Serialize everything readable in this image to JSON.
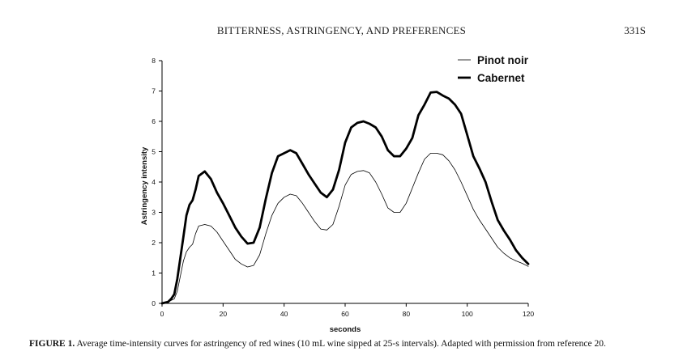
{
  "header": {
    "running_title": "BITTERNESS, ASTRINGENCY, AND PREFERENCES",
    "page_number": "331S"
  },
  "caption": {
    "label": "FIGURE 1.",
    "text": "Average time-intensity curves for astringency of red wines (10 mL wine sipped at 25-s intervals). Adapted with permission from reference 20."
  },
  "chart_data": {
    "type": "line",
    "title": "",
    "xlabel": "seconds",
    "ylabel": "Astringency intensity",
    "xlim": [
      0,
      120
    ],
    "ylim": [
      0,
      8
    ],
    "x_ticks": [
      0,
      20,
      40,
      60,
      80,
      100,
      120
    ],
    "y_ticks": [
      0,
      1,
      2,
      3,
      4,
      5,
      6,
      7,
      8
    ],
    "grid": false,
    "legend_position": "top-right",
    "series": [
      {
        "name": "Pinot noir",
        "style": "thin",
        "color": "#000000",
        "points": [
          [
            0,
            0
          ],
          [
            2,
            0.05
          ],
          [
            4,
            0.15
          ],
          [
            5,
            0.4
          ],
          [
            6,
            0.9
          ],
          [
            7,
            1.4
          ],
          [
            8,
            1.7
          ],
          [
            9,
            1.85
          ],
          [
            10,
            1.95
          ],
          [
            11,
            2.3
          ],
          [
            12,
            2.55
          ],
          [
            14,
            2.6
          ],
          [
            16,
            2.55
          ],
          [
            18,
            2.35
          ],
          [
            20,
            2.05
          ],
          [
            22,
            1.75
          ],
          [
            24,
            1.45
          ],
          [
            26,
            1.3
          ],
          [
            28,
            1.2
          ],
          [
            30,
            1.25
          ],
          [
            32,
            1.6
          ],
          [
            34,
            2.3
          ],
          [
            36,
            2.9
          ],
          [
            38,
            3.3
          ],
          [
            40,
            3.5
          ],
          [
            42,
            3.6
          ],
          [
            44,
            3.55
          ],
          [
            46,
            3.3
          ],
          [
            48,
            3.0
          ],
          [
            50,
            2.7
          ],
          [
            52,
            2.45
          ],
          [
            54,
            2.42
          ],
          [
            56,
            2.6
          ],
          [
            58,
            3.2
          ],
          [
            60,
            3.9
          ],
          [
            62,
            4.25
          ],
          [
            64,
            4.35
          ],
          [
            66,
            4.38
          ],
          [
            68,
            4.3
          ],
          [
            70,
            4.0
          ],
          [
            72,
            3.6
          ],
          [
            74,
            3.15
          ],
          [
            76,
            3.0
          ],
          [
            78,
            3.0
          ],
          [
            80,
            3.3
          ],
          [
            82,
            3.8
          ],
          [
            84,
            4.3
          ],
          [
            86,
            4.75
          ],
          [
            88,
            4.95
          ],
          [
            90,
            4.95
          ],
          [
            92,
            4.9
          ],
          [
            94,
            4.7
          ],
          [
            96,
            4.4
          ],
          [
            98,
            4.0
          ],
          [
            100,
            3.55
          ],
          [
            102,
            3.1
          ],
          [
            104,
            2.75
          ],
          [
            106,
            2.45
          ],
          [
            108,
            2.15
          ],
          [
            110,
            1.85
          ],
          [
            112,
            1.65
          ],
          [
            114,
            1.5
          ],
          [
            116,
            1.4
          ],
          [
            118,
            1.32
          ],
          [
            120,
            1.22
          ]
        ]
      },
      {
        "name": "Cabernet",
        "style": "thick",
        "color": "#000000",
        "points": [
          [
            0,
            0
          ],
          [
            2,
            0.05
          ],
          [
            3,
            0.15
          ],
          [
            4,
            0.3
          ],
          [
            5,
            0.8
          ],
          [
            6,
            1.5
          ],
          [
            7,
            2.2
          ],
          [
            8,
            2.9
          ],
          [
            9,
            3.25
          ],
          [
            10,
            3.4
          ],
          [
            11,
            3.75
          ],
          [
            12,
            4.2
          ],
          [
            14,
            4.35
          ],
          [
            16,
            4.1
          ],
          [
            18,
            3.65
          ],
          [
            20,
            3.3
          ],
          [
            22,
            2.9
          ],
          [
            24,
            2.5
          ],
          [
            26,
            2.2
          ],
          [
            28,
            1.97
          ],
          [
            30,
            2.0
          ],
          [
            32,
            2.5
          ],
          [
            34,
            3.45
          ],
          [
            36,
            4.3
          ],
          [
            38,
            4.85
          ],
          [
            40,
            4.95
          ],
          [
            42,
            5.05
          ],
          [
            44,
            4.95
          ],
          [
            46,
            4.6
          ],
          [
            48,
            4.25
          ],
          [
            50,
            3.95
          ],
          [
            52,
            3.65
          ],
          [
            54,
            3.5
          ],
          [
            56,
            3.75
          ],
          [
            58,
            4.4
          ],
          [
            60,
            5.3
          ],
          [
            62,
            5.8
          ],
          [
            64,
            5.95
          ],
          [
            66,
            6.0
          ],
          [
            68,
            5.92
          ],
          [
            70,
            5.8
          ],
          [
            72,
            5.5
          ],
          [
            74,
            5.05
          ],
          [
            76,
            4.85
          ],
          [
            78,
            4.85
          ],
          [
            80,
            5.1
          ],
          [
            82,
            5.45
          ],
          [
            84,
            6.2
          ],
          [
            86,
            6.55
          ],
          [
            88,
            6.95
          ],
          [
            90,
            6.97
          ],
          [
            92,
            6.85
          ],
          [
            94,
            6.75
          ],
          [
            96,
            6.55
          ],
          [
            98,
            6.25
          ],
          [
            100,
            5.55
          ],
          [
            102,
            4.85
          ],
          [
            104,
            4.45
          ],
          [
            106,
            4.0
          ],
          [
            108,
            3.35
          ],
          [
            110,
            2.75
          ],
          [
            112,
            2.4
          ],
          [
            114,
            2.1
          ],
          [
            116,
            1.75
          ],
          [
            118,
            1.5
          ],
          [
            120,
            1.3
          ]
        ]
      }
    ]
  }
}
